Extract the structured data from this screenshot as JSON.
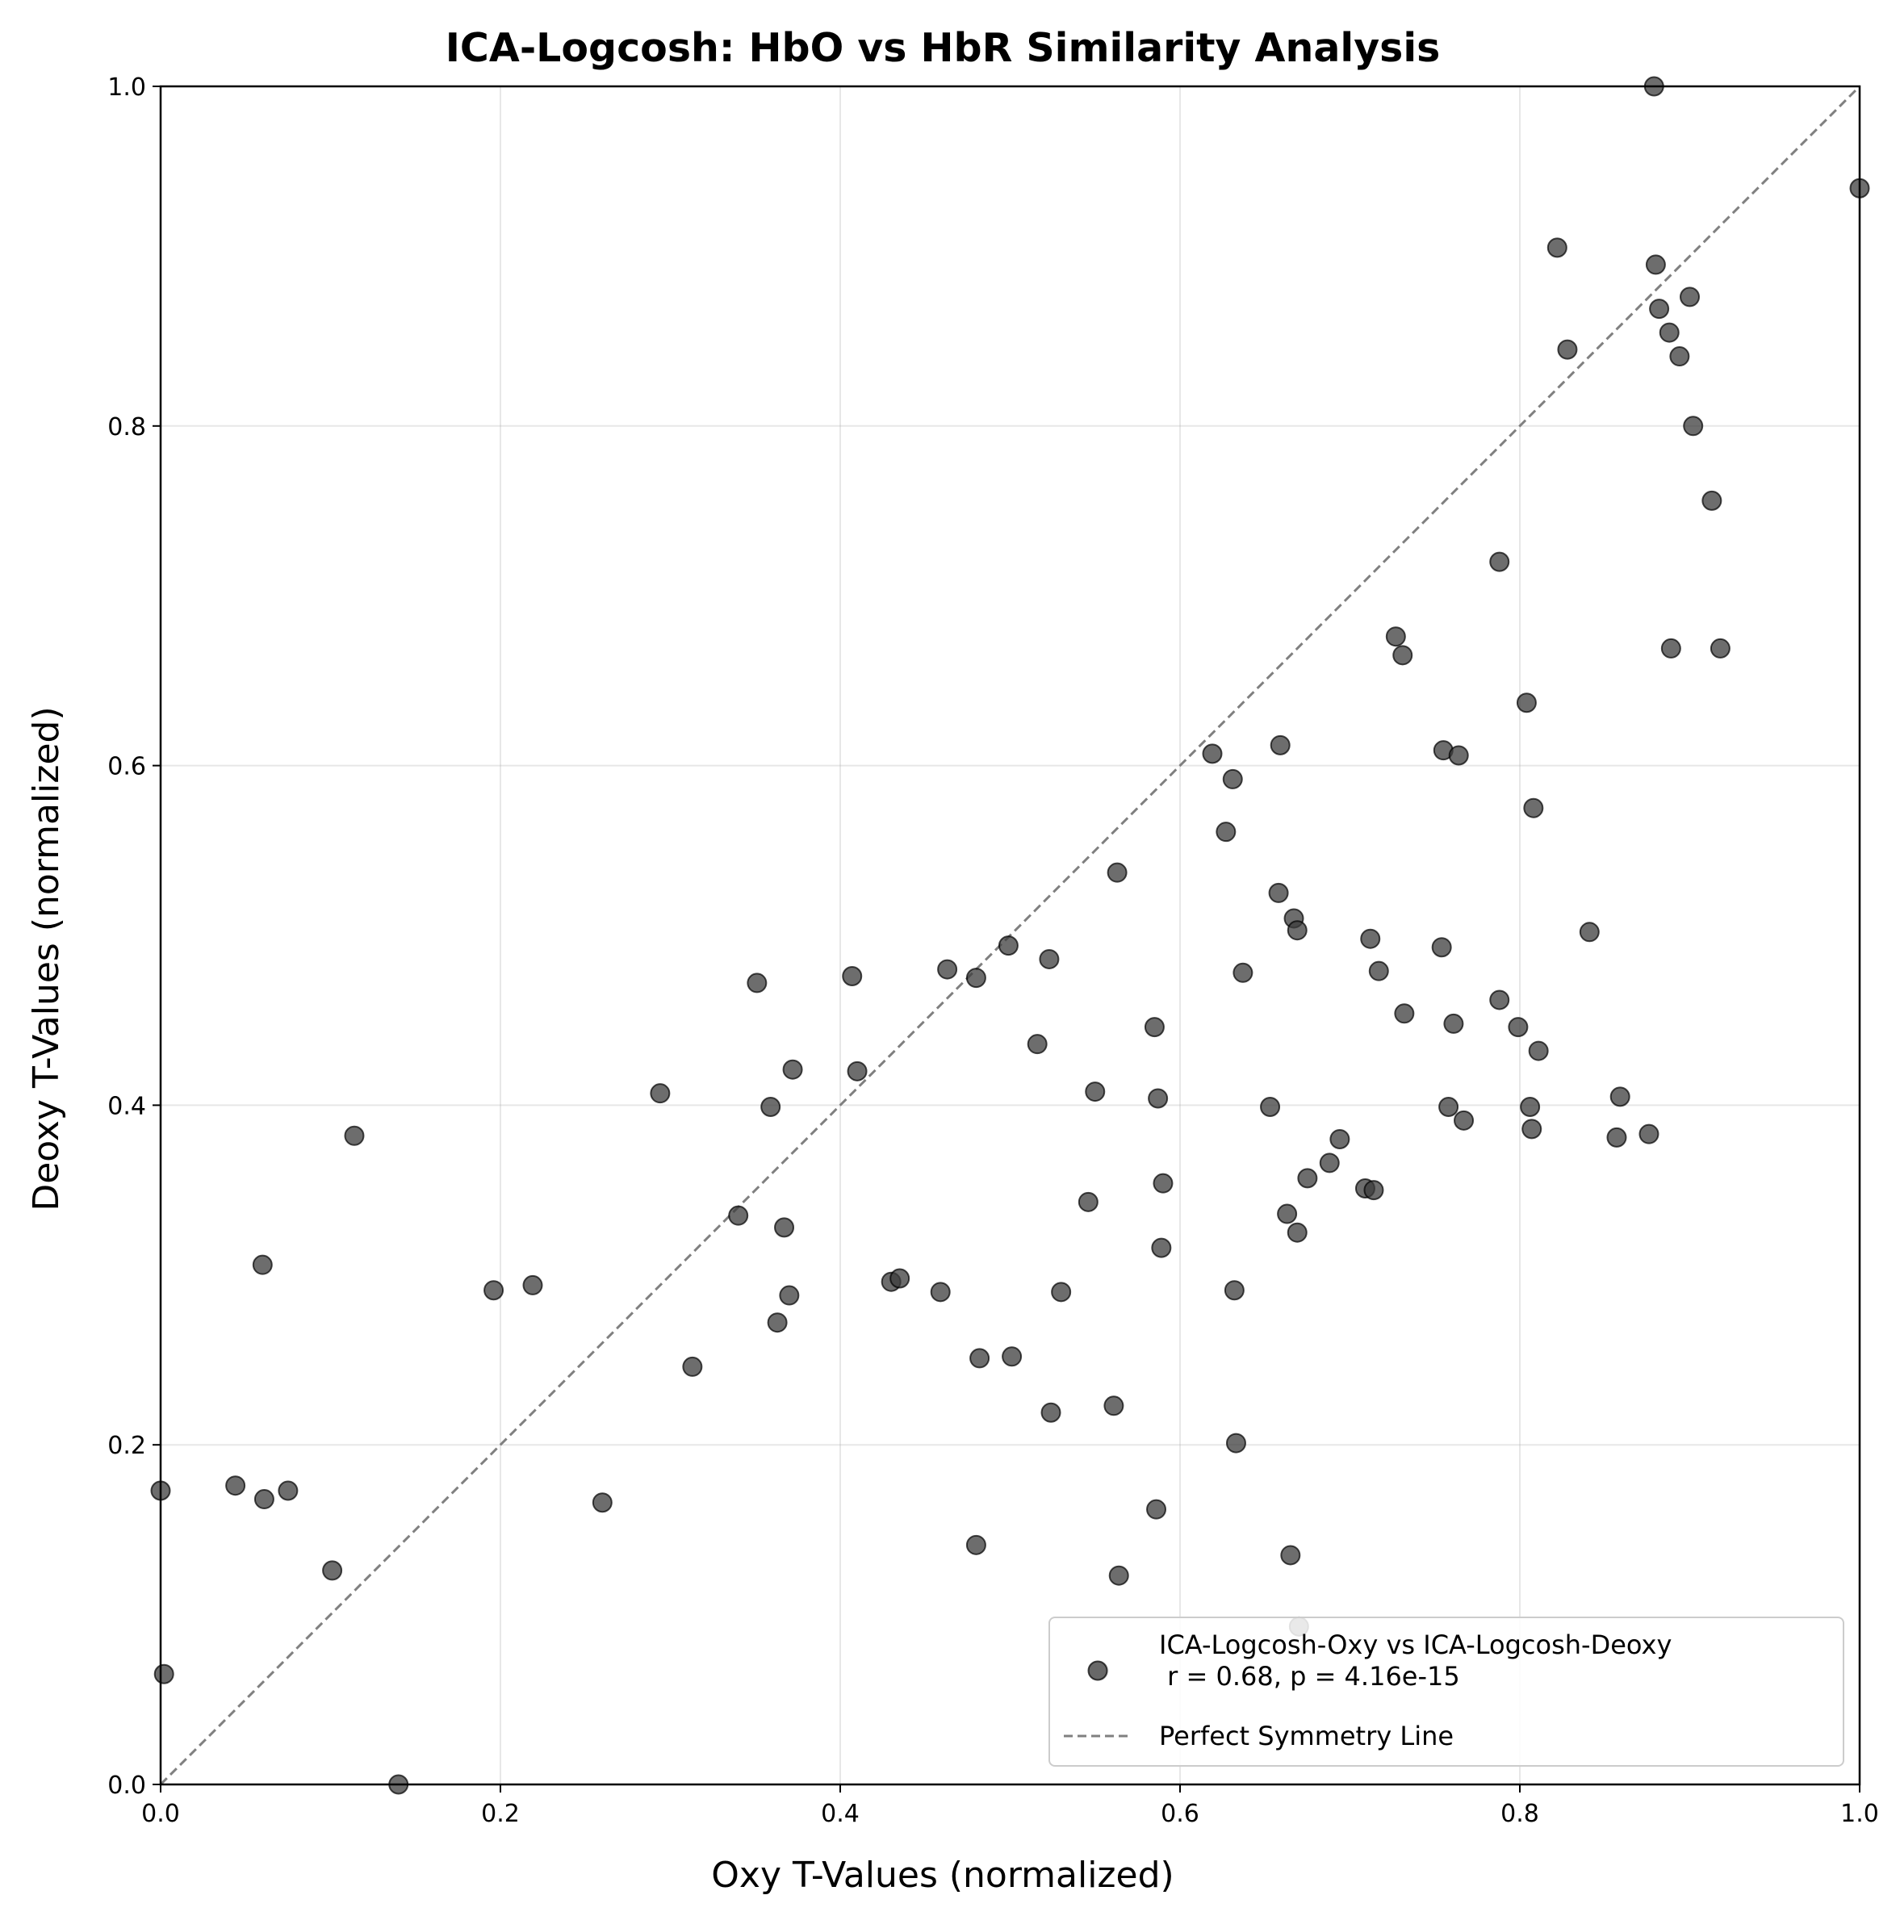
{
  "chart_data": {
    "type": "scatter",
    "title": "ICA-Logcosh: HbO vs HbR Similarity Analysis",
    "xlabel": "Oxy T-Values (normalized)",
    "ylabel": "Deoxy T-Values (normalized)",
    "xlim": [
      0,
      1
    ],
    "ylim": [
      0,
      1
    ],
    "xticks": [
      "0.0",
      "0.2",
      "0.4",
      "0.6",
      "0.8",
      "1.0"
    ],
    "yticks": [
      "0.0",
      "0.2",
      "0.4",
      "0.6",
      "0.8",
      "1.0"
    ],
    "grid": true,
    "legend_position": "bottom-right",
    "colors": {
      "points": "#3c3c3c",
      "diagonal": "#808080"
    },
    "series": [
      {
        "name": "ICA-Logcosh-Oxy vs ICA-Logcosh-Deoxy",
        "name_line2": " r = 0.68, p = 4.16e-15",
        "points": [
          [
            0.0,
            0.173
          ],
          [
            0.002,
            0.065
          ],
          [
            0.044,
            0.176
          ],
          [
            0.06,
            0.306
          ],
          [
            0.061,
            0.168
          ],
          [
            0.075,
            0.173
          ],
          [
            0.101,
            0.126
          ],
          [
            0.114,
            0.382
          ],
          [
            0.14,
            0.0
          ],
          [
            0.196,
            0.291
          ],
          [
            0.219,
            0.294
          ],
          [
            0.26,
            0.166
          ],
          [
            0.294,
            0.407
          ],
          [
            0.313,
            0.246
          ],
          [
            0.34,
            0.335
          ],
          [
            0.351,
            0.472
          ],
          [
            0.359,
            0.399
          ],
          [
            0.363,
            0.272
          ],
          [
            0.367,
            0.328
          ],
          [
            0.37,
            0.288
          ],
          [
            0.372,
            0.421
          ],
          [
            0.407,
            0.476
          ],
          [
            0.41,
            0.42
          ],
          [
            0.43,
            0.296
          ],
          [
            0.435,
            0.298
          ],
          [
            0.459,
            0.29
          ],
          [
            0.463,
            0.48
          ],
          [
            0.48,
            0.141
          ],
          [
            0.48,
            0.475
          ],
          [
            0.482,
            0.251
          ],
          [
            0.499,
            0.494
          ],
          [
            0.501,
            0.252
          ],
          [
            0.516,
            0.436
          ],
          [
            0.523,
            0.486
          ],
          [
            0.524,
            0.219
          ],
          [
            0.53,
            0.29
          ],
          [
            0.546,
            0.343
          ],
          [
            0.55,
            0.408
          ],
          [
            0.561,
            0.223
          ],
          [
            0.563,
            0.537
          ],
          [
            0.564,
            0.123
          ],
          [
            0.585,
            0.446
          ],
          [
            0.586,
            0.162
          ],
          [
            0.587,
            0.404
          ],
          [
            0.589,
            0.316
          ],
          [
            0.59,
            0.354
          ],
          [
            0.619,
            0.607
          ],
          [
            0.627,
            0.561
          ],
          [
            0.631,
            0.592
          ],
          [
            0.632,
            0.291
          ],
          [
            0.633,
            0.201
          ],
          [
            0.637,
            0.478
          ],
          [
            0.653,
            0.399
          ],
          [
            0.658,
            0.525
          ],
          [
            0.659,
            0.612
          ],
          [
            0.663,
            0.336
          ],
          [
            0.665,
            0.135
          ],
          [
            0.667,
            0.51
          ],
          [
            0.669,
            0.325
          ],
          [
            0.669,
            0.503
          ],
          [
            0.67,
            0.093
          ],
          [
            0.675,
            0.357
          ],
          [
            0.688,
            0.366
          ],
          [
            0.694,
            0.38
          ],
          [
            0.709,
            0.351
          ],
          [
            0.712,
            0.498
          ],
          [
            0.714,
            0.35
          ],
          [
            0.717,
            0.479
          ],
          [
            0.727,
            0.676
          ],
          [
            0.731,
            0.665
          ],
          [
            0.732,
            0.454
          ],
          [
            0.754,
            0.493
          ],
          [
            0.755,
            0.609
          ],
          [
            0.758,
            0.399
          ],
          [
            0.761,
            0.448
          ],
          [
            0.764,
            0.606
          ],
          [
            0.767,
            0.391
          ],
          [
            0.788,
            0.72
          ],
          [
            0.788,
            0.462
          ],
          [
            0.799,
            0.446
          ],
          [
            0.804,
            0.637
          ],
          [
            0.806,
            0.399
          ],
          [
            0.807,
            0.386
          ],
          [
            0.808,
            0.575
          ],
          [
            0.811,
            0.432
          ],
          [
            0.822,
            0.905
          ],
          [
            0.828,
            0.845
          ],
          [
            0.841,
            0.502
          ],
          [
            0.857,
            0.381
          ],
          [
            0.859,
            0.405
          ],
          [
            0.876,
            0.383
          ],
          [
            0.879,
            1.0
          ],
          [
            0.88,
            0.895
          ],
          [
            0.882,
            0.869
          ],
          [
            0.888,
            0.855
          ],
          [
            0.889,
            0.669
          ],
          [
            0.894,
            0.841
          ],
          [
            0.9,
            0.876
          ],
          [
            0.902,
            0.8
          ],
          [
            0.913,
            0.756
          ],
          [
            0.918,
            0.669
          ],
          [
            1.0,
            0.94
          ],
          [
            0.552,
            0.067
          ]
        ]
      },
      {
        "name": "Perfect Symmetry Line",
        "type": "line",
        "style": "dashed",
        "points": [
          [
            0,
            0
          ],
          [
            1,
            1
          ]
        ]
      }
    ]
  }
}
